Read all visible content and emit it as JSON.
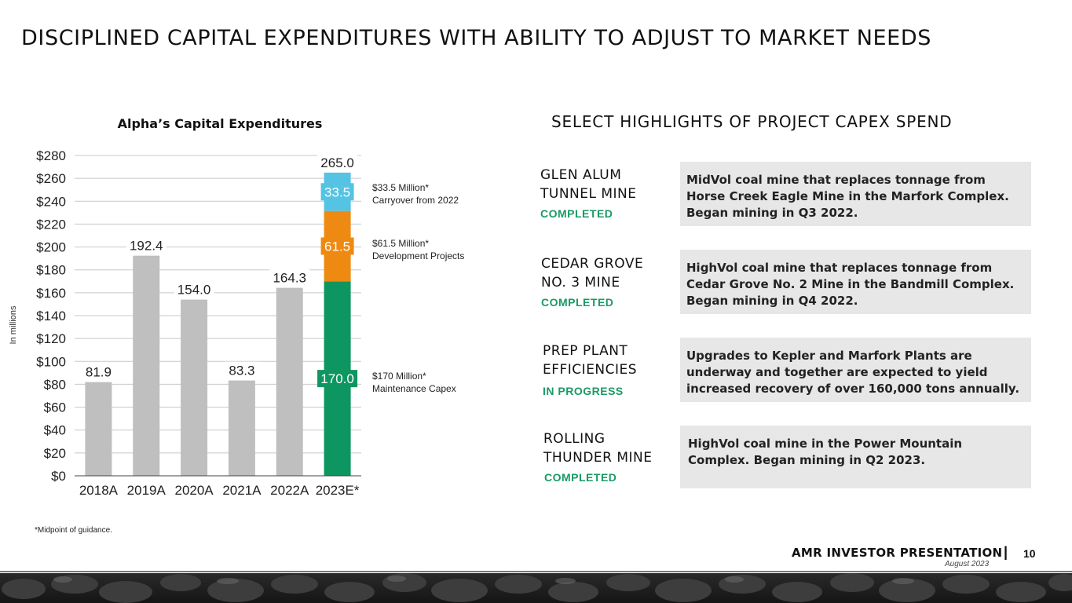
{
  "page": {
    "title": "DISCIPLINED CAPITAL EXPENDITURES WITH ABILITY TO ADJUST TO MARKET NEEDS",
    "footnote": "*Midpoint of guidance.",
    "footer": {
      "brand": "AMR INVESTOR PRESENTATION",
      "separator": "|",
      "date": "August 2023",
      "page_number": "10"
    }
  },
  "chart_data": {
    "type": "bar",
    "title": "Alpha’s Capital Expenditures",
    "ylabel": "In millions",
    "xlabel": "",
    "ylim": [
      0,
      280
    ],
    "y_ticks": [
      "$0",
      "$20",
      "$40",
      "$60",
      "$80",
      "$100",
      "$120",
      "$140",
      "$160",
      "$180",
      "$200",
      "$220",
      "$240",
      "$260",
      "$280"
    ],
    "grid": true,
    "categories": [
      "2018A",
      "2019A",
      "2020A",
      "2021A",
      "2022A",
      "2023E*"
    ],
    "values": [
      81.9,
      192.4,
      154.0,
      83.3,
      164.3,
      265.0
    ],
    "value_labels": [
      "81.9",
      "192.4",
      "154.0",
      "83.3",
      "164.3",
      "265.0"
    ],
    "stacked_bar": {
      "category": "2023E*",
      "segments": [
        {
          "name": "Maintenance Capex",
          "value": 170.0,
          "label": "170.0",
          "color": "#0e9660"
        },
        {
          "name": "Development Projects",
          "value": 61.5,
          "label": "61.5",
          "color": "#ee8a12"
        },
        {
          "name": "Carryover from 2022",
          "value": 33.5,
          "label": "33.5",
          "color": "#55c3e3"
        }
      ]
    },
    "bar_color": "#bfbfbf",
    "annotations": [
      {
        "line1": "$33.5 Million*",
        "line2": "Carryover from 2022"
      },
      {
        "line1": "$61.5 Million*",
        "line2": "Development Projects"
      },
      {
        "line1": "$170 Million*",
        "line2": "Maintenance Capex"
      }
    ]
  },
  "highlights": {
    "heading": "SELECT HIGHLIGHTS OF PROJECT CAPEX SPEND",
    "status_color": "#1a9a64",
    "items": [
      {
        "name_line1": "GLEN ALUM",
        "name_line2": "TUNNEL MINE",
        "status": "COMPLETED",
        "desc_line1": "MidVol coal mine that replaces tonnage from",
        "desc_line2": "Horse Creek Eagle Mine in the Marfork Complex.",
        "desc_line3": "Began mining in Q3 2022."
      },
      {
        "name_line1": "CEDAR GROVE",
        "name_line2": "NO. 3 MINE",
        "status": "COMPLETED",
        "desc_line1": "HighVol coal mine that replaces tonnage from",
        "desc_line2": "Cedar Grove No. 2 Mine in the Bandmill Complex.",
        "desc_line3": "Began mining in Q4 2022."
      },
      {
        "name_line1": "PREP PLANT",
        "name_line2": "EFFICIENCIES",
        "status": "IN PROGRESS",
        "desc_line1": "Upgrades to Kepler and Marfork Plants are",
        "desc_line2": "underway and together are expected to yield",
        "desc_line3": "increased recovery of over 160,000 tons annually."
      },
      {
        "name_line1": "ROLLING",
        "name_line2": "THUNDER MINE",
        "status": "COMPLETED",
        "desc_line1": "HighVol coal mine in the Power Mountain",
        "desc_line2": "Complex. Began mining in Q2 2023.",
        "desc_line3": ""
      }
    ]
  }
}
